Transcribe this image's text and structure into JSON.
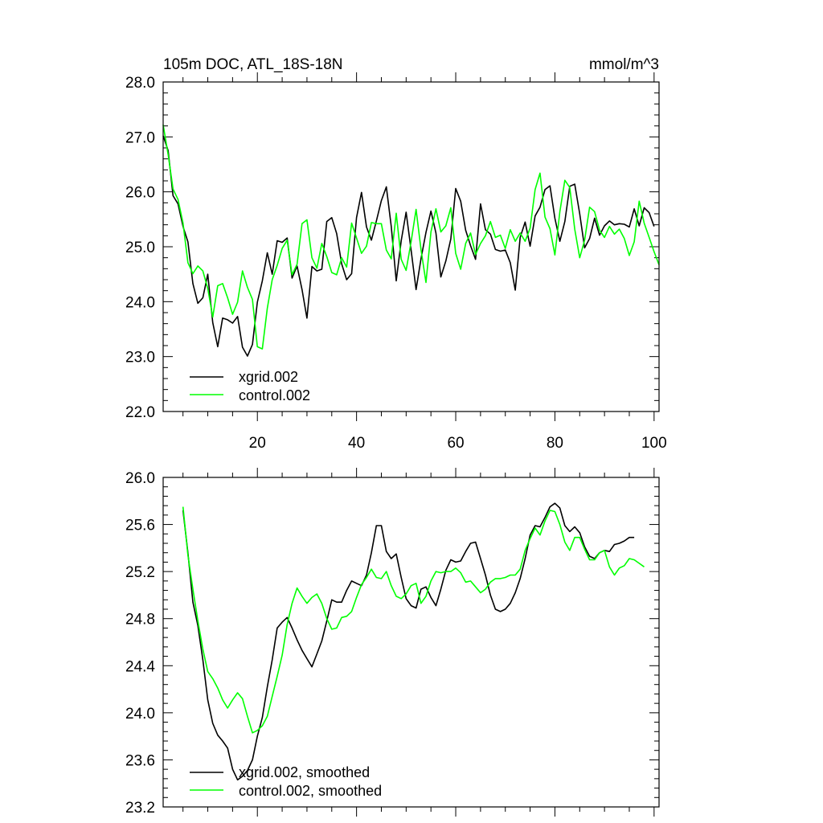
{
  "colors": {
    "xgrid": "#000000",
    "control": "#00ff00",
    "axis": "#000000"
  },
  "charts": [
    {
      "type": "line",
      "title_left": "105m DOC, ATL_18S-18N",
      "title_right": "mmol/m^3",
      "xlim": [
        1,
        101
      ],
      "ylim": [
        22.0,
        28.0
      ],
      "x_ticks": [
        20,
        40,
        60,
        80,
        100
      ],
      "x_tick_labels": [
        "20",
        "40",
        "60",
        "80",
        "100"
      ],
      "y_ticks": [
        22.0,
        23.0,
        24.0,
        25.0,
        26.0,
        27.0,
        28.0
      ],
      "y_tick_labels": [
        "22.0",
        "23.0",
        "24.0",
        "25.0",
        "26.0",
        "27.0",
        "28.0"
      ],
      "legend": [
        "xgrid.002",
        "control.002"
      ],
      "series": [
        {
          "name": "xgrid.002",
          "values": [
            27.02,
            26.75,
            25.93,
            25.78,
            25.37,
            25.09,
            24.33,
            23.97,
            24.07,
            24.5,
            23.62,
            23.18,
            23.7,
            23.67,
            23.61,
            23.73,
            23.17,
            23.01,
            23.22,
            23.99,
            24.38,
            24.89,
            24.5,
            25.11,
            25.08,
            25.16,
            24.43,
            24.65,
            24.22,
            23.7,
            24.64,
            24.56,
            24.59,
            25.46,
            25.53,
            25.24,
            24.69,
            24.4,
            24.51,
            25.53,
            25.99,
            25.36,
            25.12,
            25.47,
            25.84,
            26.09,
            25.37,
            24.38,
            25.11,
            25.63,
            24.94,
            24.22,
            24.78,
            25.26,
            25.65,
            25.25,
            24.45,
            24.74,
            25.14,
            26.06,
            25.83,
            25.3,
            25.02,
            24.77,
            25.78,
            25.31,
            25.23,
            24.95,
            24.92,
            24.94,
            24.71,
            24.21,
            25.17,
            25.45,
            25.01,
            25.56,
            25.72,
            26.04,
            26.11,
            25.52,
            25.1,
            25.46,
            26.1,
            26.14,
            25.6,
            24.98,
            25.15,
            25.52,
            25.21,
            25.38,
            25.47,
            25.4,
            25.42,
            25.41,
            25.36,
            25.69,
            25.38,
            25.71,
            25.62,
            25.37
          ]
        },
        {
          "name": "control.002",
          "values": [
            27.22,
            26.68,
            26.05,
            25.86,
            25.43,
            24.71,
            24.51,
            24.65,
            24.56,
            24.24,
            23.72,
            24.29,
            24.33,
            24.07,
            23.77,
            23.99,
            24.56,
            24.26,
            24.04,
            23.18,
            23.14,
            23.88,
            24.4,
            24.66,
            24.97,
            25.12,
            24.49,
            24.68,
            25.42,
            25.49,
            24.8,
            24.61,
            25.06,
            24.82,
            24.53,
            24.49,
            24.8,
            24.63,
            25.43,
            25.16,
            24.88,
            25.01,
            25.44,
            25.42,
            25.42,
            24.94,
            24.78,
            25.61,
            24.77,
            24.57,
            25.09,
            25.68,
            24.95,
            24.35,
            25.27,
            25.69,
            25.27,
            25.38,
            25.71,
            24.88,
            24.59,
            25.06,
            25.25,
            24.86,
            25.06,
            25.2,
            25.46,
            25.17,
            25.21,
            24.97,
            25.31,
            25.1,
            25.25,
            25.1,
            25.34,
            26.04,
            26.34,
            25.54,
            25.33,
            24.85,
            25.64,
            26.21,
            26.08,
            25.32,
            24.8,
            25.12,
            25.72,
            25.64,
            25.3,
            25.17,
            25.37,
            25.23,
            25.32,
            25.15,
            24.84,
            25.09,
            25.83,
            25.43,
            25.17,
            24.91,
            24.67
          ]
        }
      ]
    },
    {
      "type": "line",
      "xlim": [
        1,
        101
      ],
      "ylim": [
        23.2,
        26.0
      ],
      "x_ticks": [
        20,
        40,
        60,
        80,
        100
      ],
      "y_ticks": [
        23.2,
        23.6,
        24.0,
        24.4,
        24.8,
        25.2,
        25.6,
        26.0
      ],
      "y_tick_labels": [
        "23.2",
        "23.6",
        "24.0",
        "24.4",
        "24.8",
        "25.2",
        "25.6",
        "26.0"
      ],
      "legend": [
        "xgrid.002, smoothed",
        "control.002, smoothed"
      ],
      "series": [
        {
          "name": "xgrid.002, smoothed",
          "x_start": 5,
          "values": [
            25.72,
            25.36,
            24.94,
            24.74,
            24.45,
            24.11,
            23.91,
            23.81,
            23.76,
            23.7,
            23.52,
            23.43,
            23.46,
            23.51,
            23.6,
            23.8,
            23.96,
            24.22,
            24.45,
            24.72,
            24.77,
            24.81,
            24.72,
            24.62,
            24.53,
            24.46,
            24.39,
            24.5,
            24.61,
            24.78,
            24.96,
            24.94,
            24.94,
            25.04,
            25.12,
            25.1,
            25.08,
            25.17,
            25.36,
            25.59,
            25.59,
            25.37,
            25.31,
            25.35,
            25.15,
            24.97,
            24.91,
            24.89,
            25.05,
            25.07,
            24.98,
            24.91,
            25.05,
            25.21,
            25.3,
            25.28,
            25.29,
            25.37,
            25.44,
            25.45,
            25.31,
            25.17,
            25.0,
            24.88,
            24.86,
            24.88,
            24.93,
            25.02,
            25.14,
            25.31,
            25.51,
            25.59,
            25.58,
            25.66,
            25.75,
            25.78,
            25.74,
            25.59,
            25.54,
            25.58,
            25.53,
            25.41,
            25.33,
            25.31,
            25.36,
            25.38,
            25.37,
            25.43,
            25.44,
            25.46,
            25.49,
            25.49
          ]
        },
        {
          "name": "control.002, smoothed",
          "x_start": 5,
          "values": [
            25.75,
            25.34,
            25.05,
            24.78,
            24.54,
            24.35,
            24.29,
            24.21,
            24.11,
            24.04,
            24.11,
            24.17,
            24.12,
            23.97,
            23.83,
            23.85,
            23.89,
            23.97,
            24.14,
            24.31,
            24.49,
            24.75,
            24.93,
            25.06,
            24.99,
            24.93,
            24.98,
            25.01,
            24.93,
            24.8,
            24.71,
            24.72,
            24.81,
            24.82,
            24.86,
            24.98,
            25.09,
            25.15,
            25.22,
            25.15,
            25.14,
            25.2,
            25.08,
            24.99,
            24.97,
            25.01,
            25.08,
            25.1,
            24.93,
            24.99,
            25.12,
            25.2,
            25.19,
            25.2,
            25.2,
            25.23,
            25.19,
            25.11,
            25.12,
            25.07,
            25.02,
            25.05,
            25.11,
            25.14,
            25.14,
            25.15,
            25.17,
            25.17,
            25.22,
            25.38,
            25.48,
            25.57,
            25.51,
            25.63,
            25.72,
            25.71,
            25.6,
            25.45,
            25.38,
            25.49,
            25.49,
            25.39,
            25.3,
            25.3,
            25.36,
            25.38,
            25.24,
            25.17,
            25.23,
            25.25,
            25.31,
            25.3,
            25.27,
            25.24
          ]
        }
      ]
    }
  ]
}
